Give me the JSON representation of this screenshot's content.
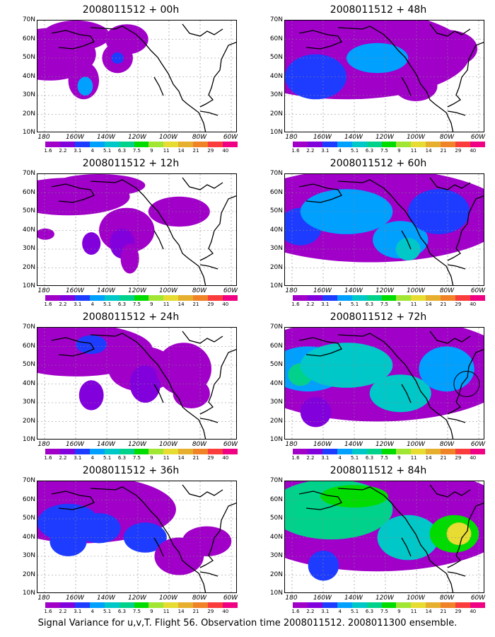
{
  "caption": "Signal Variance for u,v,T. Flight 56. Observation time 2008011512. 2008011300 ensemble.",
  "lat_labels": [
    "70N",
    "60N",
    "50N",
    "40N",
    "30N",
    "20N",
    "10N"
  ],
  "lon_labels": [
    "180",
    "160W",
    "140W",
    "120W",
    "100W",
    "80W",
    "60W"
  ],
  "colorbar": {
    "labels": [
      "1.6",
      "2.2",
      "3.1",
      "4",
      "5.1",
      "6.3",
      "7.5",
      "9",
      "11",
      "14",
      "21",
      "29",
      "40"
    ],
    "colors": [
      "#a000c8",
      "#8200dc",
      "#1e3cff",
      "#00a0ff",
      "#00c8c8",
      "#00d28c",
      "#00dc00",
      "#a0e632",
      "#e6dc32",
      "#e6af2d",
      "#f08228",
      "#fa3c3c",
      "#f00082"
    ]
  },
  "panels": [
    {
      "title": "2008011512 + 00h",
      "lead_hours": 0
    },
    {
      "title": "2008011512 + 48h",
      "lead_hours": 48
    },
    {
      "title": "2008011512 + 12h",
      "lead_hours": 12
    },
    {
      "title": "2008011512 + 60h",
      "lead_hours": 60
    },
    {
      "title": "2008011512 + 24h",
      "lead_hours": 24
    },
    {
      "title": "2008011512 + 72h",
      "lead_hours": 72
    },
    {
      "title": "2008011512 + 36h",
      "lead_hours": 36
    },
    {
      "title": "2008011512 + 84h",
      "lead_hours": 84
    }
  ]
}
